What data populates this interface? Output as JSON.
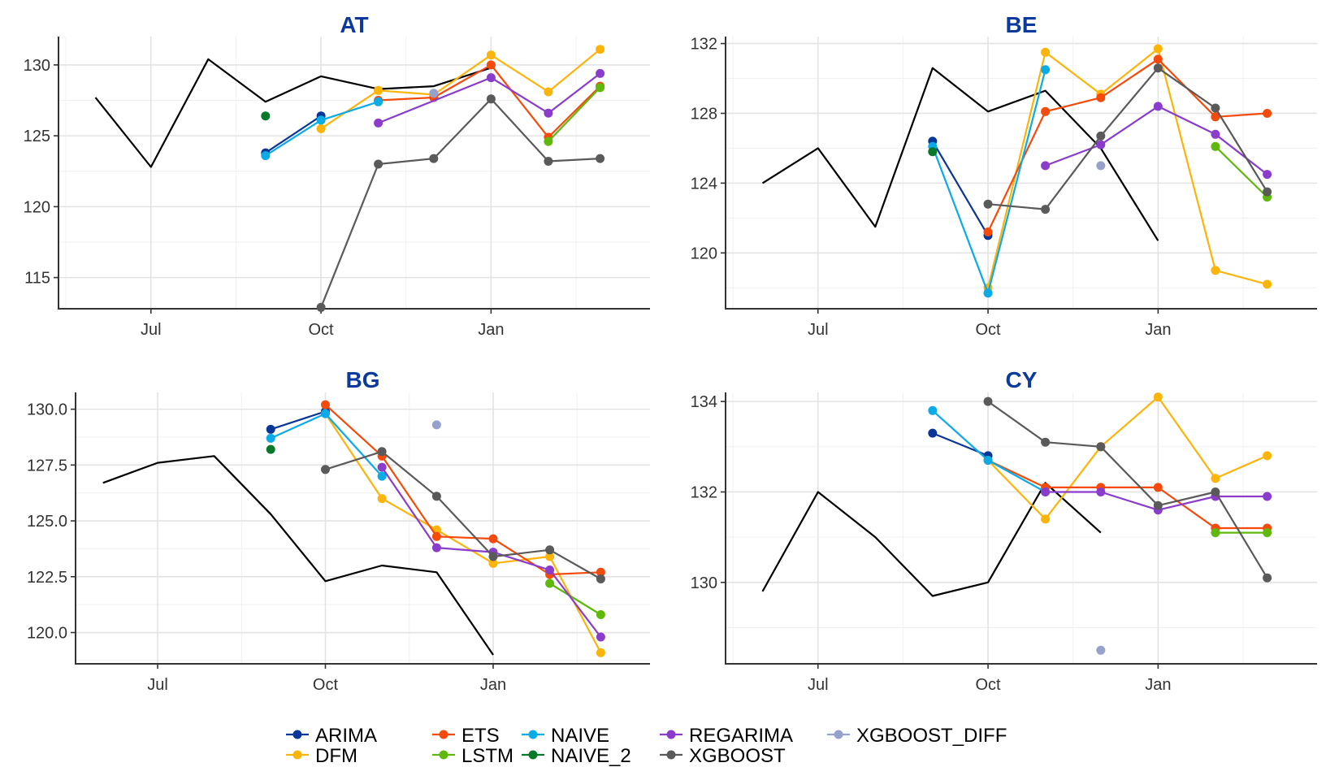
{
  "legend": {
    "items": [
      {
        "label": "ARIMA",
        "color": "#0a3697"
      },
      {
        "label": "DFM",
        "color": "#fbb40a"
      },
      {
        "label": "ETS",
        "color": "#f44b0c"
      },
      {
        "label": "LSTM",
        "color": "#60b80c"
      },
      {
        "label": "NAIVE",
        "color": "#0aabe6"
      },
      {
        "label": "NAIVE_2",
        "color": "#08782a"
      },
      {
        "label": "REGARIMA",
        "color": "#8a3ccc"
      },
      {
        "label": "XGBOOST",
        "color": "#5a5a5a"
      },
      {
        "label": "XGBOOST_DIFF",
        "color": "#97a2cc"
      }
    ]
  },
  "chart_data": [
    {
      "type": "line",
      "title": "AT",
      "x_axis": {
        "type": "date",
        "ticks": [
          "2022-07-01",
          "2022-10-01",
          "2023-01-01"
        ],
        "tick_labels": [
          "Jul",
          "Oct",
          "Jan"
        ],
        "xlim": [
          "2022-05-12",
          "2023-03-28"
        ]
      },
      "y_axis": {
        "ticks": [
          115,
          120,
          125,
          130
        ],
        "tick_labels": [
          "115",
          "120",
          "125",
          "130"
        ],
        "ylim": [
          112.8,
          132.0
        ]
      },
      "grid": true,
      "actual": {
        "x": [
          "2022-06-01",
          "2022-07-01",
          "2022-08-01",
          "2022-09-01",
          "2022-10-01",
          "2022-11-01",
          "2022-12-01",
          "2023-01-01"
        ],
        "y": [
          127.7,
          122.8,
          130.4,
          127.4,
          129.2,
          128.3,
          128.5,
          129.8
        ]
      },
      "series": [
        {
          "name": "ARIMA",
          "x": [
            "2022-09-01",
            "2022-10-01"
          ],
          "y": [
            123.8,
            126.4
          ]
        },
        {
          "name": "DFM",
          "x": [
            "2022-10-01",
            "2022-11-01",
            "2022-12-01",
            "2023-01-01",
            "2023-02-01",
            "2023-03-01"
          ],
          "y": [
            125.5,
            128.2,
            127.9,
            130.7,
            128.1,
            131.1
          ]
        },
        {
          "name": "ETS",
          "x": [
            "2022-11-01",
            "2022-12-01",
            "2023-01-01",
            "2023-02-01",
            "2023-03-01"
          ],
          "y": [
            127.5,
            127.7,
            130.0,
            124.9,
            128.5
          ]
        },
        {
          "name": "LSTM",
          "x": [
            "2023-02-01",
            "2023-03-01"
          ],
          "y": [
            124.6,
            128.4
          ]
        },
        {
          "name": "NAIVE",
          "x": [
            "2022-09-01",
            "2022-10-01",
            "2022-11-01"
          ],
          "y": [
            123.6,
            126.1,
            127.4
          ]
        },
        {
          "name": "NAIVE_2",
          "x": [
            "2022-09-01"
          ],
          "y": [
            126.4
          ]
        },
        {
          "name": "REGARIMA",
          "x": [
            "2022-11-01",
            "2023-01-01",
            "2023-02-01",
            "2023-03-01"
          ],
          "y": [
            125.9,
            129.1,
            126.6,
            129.4
          ]
        },
        {
          "name": "XGBOOST",
          "x": [
            "2022-10-01",
            "2022-11-01",
            "2022-12-01",
            "2023-01-01",
            "2023-02-01",
            "2023-03-01"
          ],
          "y": [
            112.9,
            123.0,
            123.4,
            127.6,
            123.2,
            123.4
          ]
        },
        {
          "name": "XGBOOST_DIFF",
          "x": [
            "2022-12-01"
          ],
          "y": [
            128.0
          ]
        }
      ]
    },
    {
      "type": "line",
      "title": "BE",
      "x_axis": {
        "type": "date",
        "ticks": [
          "2022-07-01",
          "2022-10-01",
          "2023-01-01"
        ],
        "tick_labels": [
          "Jul",
          "Oct",
          "Jan"
        ],
        "xlim": [
          "2022-05-12",
          "2023-03-28"
        ]
      },
      "y_axis": {
        "ticks": [
          120,
          124,
          128,
          132
        ],
        "tick_labels": [
          "120",
          "124",
          "128",
          "132"
        ],
        "ylim": [
          116.8,
          132.4
        ]
      },
      "grid": true,
      "actual": {
        "x": [
          "2022-06-01",
          "2022-07-01",
          "2022-08-01",
          "2022-09-01",
          "2022-10-01",
          "2022-11-01",
          "2022-12-01",
          "2023-01-01"
        ],
        "y": [
          124.0,
          126.0,
          121.5,
          130.6,
          128.1,
          129.3,
          126.0,
          120.7
        ]
      },
      "series": [
        {
          "name": "ARIMA",
          "x": [
            "2022-09-01",
            "2022-10-01"
          ],
          "y": [
            126.4,
            121.0
          ]
        },
        {
          "name": "DFM",
          "x": [
            "2022-10-01",
            "2022-11-01",
            "2022-12-01",
            "2023-01-01",
            "2023-02-01",
            "2023-03-01"
          ],
          "y": [
            118.0,
            131.5,
            129.1,
            131.7,
            119.0,
            118.2
          ]
        },
        {
          "name": "ETS",
          "x": [
            "2022-10-01",
            "2022-11-01",
            "2022-12-01",
            "2023-01-01",
            "2023-02-01",
            "2023-03-01"
          ],
          "y": [
            121.2,
            128.1,
            128.9,
            131.1,
            127.8,
            128.0
          ]
        },
        {
          "name": "LSTM",
          "x": [
            "2023-02-01",
            "2023-03-01"
          ],
          "y": [
            126.1,
            123.2
          ]
        },
        {
          "name": "NAIVE",
          "x": [
            "2022-09-01",
            "2022-10-01",
            "2022-11-01"
          ],
          "y": [
            126.1,
            117.7,
            130.5
          ]
        },
        {
          "name": "NAIVE_2",
          "x": [
            "2022-09-01"
          ],
          "y": [
            125.8
          ]
        },
        {
          "name": "REGARIMA",
          "x": [
            "2022-11-01",
            "2022-12-01",
            "2023-01-01",
            "2023-02-01",
            "2023-03-01"
          ],
          "y": [
            125.0,
            126.2,
            128.4,
            126.8,
            124.5
          ]
        },
        {
          "name": "XGBOOST",
          "x": [
            "2022-10-01",
            "2022-11-01",
            "2022-12-01",
            "2023-01-01",
            "2023-02-01",
            "2023-03-01"
          ],
          "y": [
            122.8,
            122.5,
            126.7,
            130.6,
            128.3,
            123.5
          ]
        },
        {
          "name": "XGBOOST_DIFF",
          "x": [
            "2022-12-01"
          ],
          "y": [
            125.0
          ]
        }
      ]
    },
    {
      "type": "line",
      "title": "BG",
      "x_axis": {
        "type": "date",
        "ticks": [
          "2022-07-01",
          "2022-10-01",
          "2023-01-01"
        ],
        "tick_labels": [
          "Jul",
          "Oct",
          "Jan"
        ],
        "xlim": [
          "2022-05-17",
          "2023-03-28"
        ]
      },
      "y_axis": {
        "ticks": [
          120.0,
          122.5,
          125.0,
          127.5,
          130.0
        ],
        "tick_labels": [
          "120.0",
          "122.5",
          "125.0",
          "127.5",
          "130.0"
        ],
        "ylim": [
          118.6,
          130.75
        ]
      },
      "grid": true,
      "actual": {
        "x": [
          "2022-06-01",
          "2022-07-01",
          "2022-08-01",
          "2022-09-01",
          "2022-10-01",
          "2022-11-01",
          "2022-12-01",
          "2023-01-01"
        ],
        "y": [
          126.7,
          127.6,
          127.9,
          125.3,
          122.3,
          123.0,
          122.7,
          119.0
        ]
      },
      "series": [
        {
          "name": "ARIMA",
          "x": [
            "2022-09-01",
            "2022-10-01"
          ],
          "y": [
            129.1,
            129.9
          ]
        },
        {
          "name": "DFM",
          "x": [
            "2022-10-01",
            "2022-11-01",
            "2022-12-01",
            "2023-01-01",
            "2023-02-01",
            "2023-03-01"
          ],
          "y": [
            129.8,
            126.0,
            124.6,
            123.1,
            123.4,
            119.1
          ]
        },
        {
          "name": "ETS",
          "x": [
            "2022-10-01",
            "2022-11-01",
            "2022-12-01",
            "2023-01-01",
            "2023-02-01",
            "2023-03-01"
          ],
          "y": [
            130.2,
            127.9,
            124.3,
            124.2,
            122.6,
            122.7
          ]
        },
        {
          "name": "LSTM",
          "x": [
            "2023-02-01",
            "2023-03-01"
          ],
          "y": [
            122.2,
            120.8
          ]
        },
        {
          "name": "NAIVE",
          "x": [
            "2022-09-01",
            "2022-10-01",
            "2022-11-01"
          ],
          "y": [
            128.7,
            129.8,
            127.0
          ]
        },
        {
          "name": "NAIVE_2",
          "x": [
            "2022-09-01"
          ],
          "y": [
            128.2
          ]
        },
        {
          "name": "REGARIMA",
          "x": [
            "2022-11-01",
            "2022-12-01",
            "2023-01-01",
            "2023-02-01",
            "2023-03-01"
          ],
          "y": [
            127.4,
            123.8,
            123.6,
            122.8,
            119.8
          ]
        },
        {
          "name": "XGBOOST",
          "x": [
            "2022-10-01",
            "2022-11-01",
            "2022-12-01",
            "2023-01-01",
            "2023-02-01",
            "2023-03-01"
          ],
          "y": [
            127.3,
            128.1,
            126.1,
            123.4,
            123.7,
            122.4
          ]
        },
        {
          "name": "XGBOOST_DIFF",
          "x": [
            "2022-12-01"
          ],
          "y": [
            129.3
          ]
        }
      ]
    },
    {
      "type": "line",
      "title": "CY",
      "x_axis": {
        "type": "date",
        "ticks": [
          "2022-07-01",
          "2022-10-01",
          "2023-01-01"
        ],
        "tick_labels": [
          "Jul",
          "Oct",
          "Jan"
        ],
        "xlim": [
          "2022-05-12",
          "2023-03-28"
        ]
      },
      "y_axis": {
        "ticks": [
          130,
          132,
          134
        ],
        "tick_labels": [
          "130",
          "132",
          "134"
        ],
        "ylim": [
          128.2,
          134.2
        ]
      },
      "grid": true,
      "actual": {
        "x": [
          "2022-06-01",
          "2022-07-01",
          "2022-08-01",
          "2022-09-01",
          "2022-10-01",
          "2022-11-01",
          "2022-12-01"
        ],
        "y": [
          129.8,
          132.0,
          131.0,
          129.7,
          130.0,
          132.2,
          131.1
        ]
      },
      "series": [
        {
          "name": "ARIMA",
          "x": [
            "2022-09-01",
            "2022-10-01"
          ],
          "y": [
            133.3,
            132.8
          ]
        },
        {
          "name": "DFM",
          "x": [
            "2022-10-01",
            "2022-11-01",
            "2022-12-01",
            "2023-01-01",
            "2023-02-01",
            "2023-03-01"
          ],
          "y": [
            132.7,
            131.4,
            133.0,
            134.1,
            132.3,
            132.8
          ]
        },
        {
          "name": "ETS",
          "x": [
            "2022-10-01",
            "2022-11-01",
            "2022-12-01",
            "2023-01-01",
            "2023-02-01",
            "2023-03-01"
          ],
          "y": [
            132.7,
            132.1,
            132.1,
            132.1,
            131.2,
            131.2
          ]
        },
        {
          "name": "LSTM",
          "x": [
            "2023-02-01",
            "2023-03-01"
          ],
          "y": [
            131.1,
            131.1
          ]
        },
        {
          "name": "NAIVE",
          "x": [
            "2022-09-01",
            "2022-10-01",
            "2022-11-01"
          ],
          "y": [
            133.8,
            132.7,
            132.0
          ]
        },
        {
          "name": "NAIVE_2",
          "x": [],
          "y": []
        },
        {
          "name": "REGARIMA",
          "x": [
            "2022-11-01",
            "2022-12-01",
            "2023-01-01",
            "2023-02-01",
            "2023-03-01"
          ],
          "y": [
            132.0,
            132.0,
            131.6,
            131.9,
            131.9
          ]
        },
        {
          "name": "XGBOOST",
          "x": [
            "2022-10-01",
            "2022-11-01",
            "2022-12-01",
            "2023-01-01",
            "2023-02-01",
            "2023-03-01"
          ],
          "y": [
            134.0,
            133.1,
            133.0,
            131.7,
            132.0,
            130.1
          ]
        },
        {
          "name": "XGBOOST_DIFF",
          "x": [
            "2022-12-01"
          ],
          "y": [
            128.5
          ]
        }
      ]
    }
  ]
}
